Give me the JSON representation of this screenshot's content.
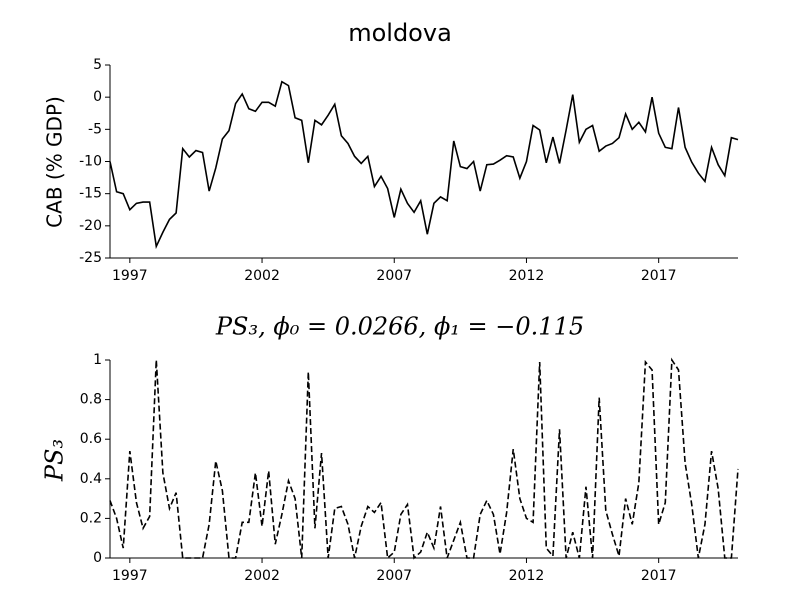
{
  "chart_data": [
    {
      "type": "line",
      "title": "moldova",
      "y_label": "CAB (% GDP)",
      "x": [
        1996.25,
        1996.5,
        1996.75,
        1997,
        1997.25,
        1997.5,
        1997.75,
        1998,
        1998.25,
        1998.5,
        1998.75,
        1999,
        1999.25,
        1999.5,
        1999.75,
        2000,
        2000.25,
        2000.5,
        2000.75,
        2001,
        2001.25,
        2001.5,
        2001.75,
        2002,
        2002.25,
        2002.5,
        2002.75,
        2003,
        2003.25,
        2003.5,
        2003.75,
        2004,
        2004.25,
        2004.5,
        2004.75,
        2005,
        2005.25,
        2005.5,
        2005.75,
        2006,
        2006.25,
        2006.5,
        2006.75,
        2007,
        2007.25,
        2007.5,
        2007.75,
        2008,
        2008.25,
        2008.5,
        2008.75,
        2009,
        2009.25,
        2009.5,
        2009.75,
        2010,
        2010.25,
        2010.5,
        2010.75,
        2011,
        2011.25,
        2011.5,
        2011.75,
        2012,
        2012.25,
        2012.5,
        2012.75,
        2013,
        2013.25,
        2013.5,
        2013.75,
        2014,
        2014.25,
        2014.5,
        2014.75,
        2015,
        2015.25,
        2015.5,
        2015.75,
        2016,
        2016.25,
        2016.5,
        2016.75,
        2017,
        2017.25,
        2017.5,
        2017.75,
        2018,
        2018.25,
        2018.5,
        2018.75,
        2019,
        2019.25,
        2019.5,
        2019.75,
        2020
      ],
      "series": [
        {
          "color": "#000000",
          "line_style": "solid",
          "values": [
            -10,
            -14.7,
            -15,
            -17.5,
            -16.5,
            -16.3,
            -16.3,
            -23.2,
            -21,
            -19,
            -18,
            -8,
            -9.3,
            -8.3,
            -8.6,
            -14.6,
            -11,
            -6.5,
            -5.2,
            -1,
            0.5,
            -1.8,
            -2.2,
            -0.8,
            -0.8,
            -1.4,
            2.4,
            1.8,
            -3.2,
            -3.6,
            -10.2,
            -3.6,
            -4.3,
            -2.8,
            -1.1,
            -6,
            -7.2,
            -9.2,
            -10.3,
            -9.2,
            -13.9,
            -12.3,
            -14.2,
            -18.7,
            -14.3,
            -16.5,
            -17.9,
            -16.1,
            -21.3,
            -16.5,
            -15.5,
            -16.1,
            -6.8,
            -10.8,
            -11.1,
            -10,
            -14.6,
            -10.5,
            -10.4,
            -9.8,
            -9.1,
            -9.3,
            -12.6,
            -10,
            -4.4,
            -5.1,
            -10.2,
            -6.2,
            -10.3,
            -5.1,
            0.4,
            -7,
            -5,
            -4.4,
            -8.4,
            -7.6,
            -7.2,
            -6.3,
            -2.6,
            -5,
            -3.9,
            -5.4,
            0,
            -5.6,
            -7.8,
            -8,
            -1.6,
            -7.8,
            -10.1,
            -11.8,
            -13.1,
            -7.8,
            -10.5,
            -12.2,
            -6.3,
            -6.6
          ]
        }
      ],
      "xlim": [
        1996.25,
        2020
      ],
      "xticks": [
        1997,
        2002,
        2007,
        2012,
        2017
      ],
      "ylim": [
        -25,
        5
      ],
      "yticks": [
        -25,
        -20,
        -15,
        -10,
        -5,
        0,
        5
      ]
    },
    {
      "type": "line",
      "title": "PS₃, ϕ₀ = 0.0266, ϕ₁ = −0.115",
      "y_label": "PS₃",
      "x": [
        1996.25,
        1996.5,
        1996.75,
        1997,
        1997.25,
        1997.5,
        1997.75,
        1998,
        1998.25,
        1998.5,
        1998.75,
        1999,
        1999.25,
        1999.5,
        1999.75,
        2000,
        2000.25,
        2000.5,
        2000.75,
        2001,
        2001.25,
        2001.5,
        2001.75,
        2002,
        2002.25,
        2002.5,
        2002.75,
        2003,
        2003.25,
        2003.5,
        2003.75,
        2004,
        2004.25,
        2004.5,
        2004.75,
        2005,
        2005.25,
        2005.5,
        2005.75,
        2006,
        2006.25,
        2006.5,
        2006.75,
        2007,
        2007.25,
        2007.5,
        2007.75,
        2008,
        2008.25,
        2008.5,
        2008.75,
        2009,
        2009.25,
        2009.5,
        2009.75,
        2010,
        2010.25,
        2010.5,
        2010.75,
        2011,
        2011.25,
        2011.5,
        2011.75,
        2012,
        2012.25,
        2012.5,
        2012.75,
        2013,
        2013.25,
        2013.5,
        2013.75,
        2014,
        2014.25,
        2014.5,
        2014.75,
        2015,
        2015.25,
        2015.5,
        2015.75,
        2016,
        2016.25,
        2016.5,
        2016.75,
        2017,
        2017.25,
        2017.5,
        2017.75,
        2018,
        2018.25,
        2018.5,
        2018.75,
        2019,
        2019.25,
        2019.5,
        2019.75,
        2020
      ],
      "series": [
        {
          "color": "#000000",
          "line_style": "dashed",
          "values": [
            0.29,
            0.2,
            0.05,
            0.54,
            0.28,
            0.15,
            0.21,
            1.0,
            0.43,
            0.25,
            0.33,
            0,
            0,
            0,
            0,
            0.17,
            0.49,
            0.34,
            0,
            0,
            0.18,
            0.18,
            0.43,
            0.16,
            0.44,
            0.07,
            0.22,
            0.39,
            0.3,
            0,
            0.94,
            0.15,
            0.53,
            0,
            0.25,
            0.26,
            0.17,
            0,
            0.16,
            0.26,
            0.23,
            0.28,
            0,
            0.03,
            0.22,
            0.27,
            0,
            0.03,
            0.13,
            0.05,
            0.26,
            0,
            0.09,
            0.18,
            0,
            0,
            0.22,
            0.29,
            0.22,
            0.02,
            0.23,
            0.55,
            0.3,
            0.2,
            0.18,
            0.99,
            0.05,
            0.01,
            0.65,
            0,
            0.13,
            0,
            0.36,
            0,
            0.81,
            0.24,
            0.12,
            0.01,
            0.3,
            0.17,
            0.38,
            0.99,
            0.95,
            0.17,
            0.28,
            1.0,
            0.95,
            0.48,
            0.27,
            0,
            0.17,
            0.54,
            0.35,
            0,
            0,
            0.45
          ]
        }
      ],
      "xlim": [
        1996.25,
        2020
      ],
      "xticks": [
        1997,
        2002,
        2007,
        2012,
        2017
      ],
      "ylim": [
        0,
        1
      ],
      "yticks": [
        0,
        0.2,
        0.4,
        0.6,
        0.8,
        1
      ]
    }
  ]
}
